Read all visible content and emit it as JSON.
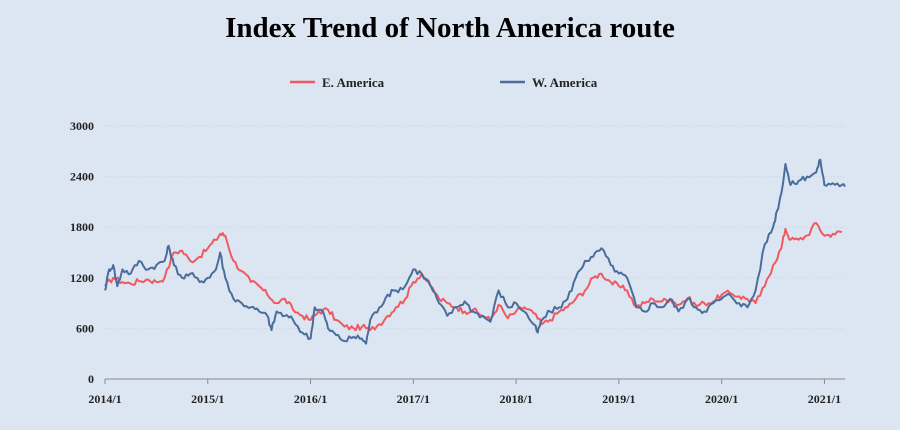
{
  "chart_data": {
    "type": "line",
    "title": "Index Trend of North America route",
    "xlabel": "",
    "ylabel": "",
    "ylim": [
      0,
      3000
    ],
    "yticks": [
      0,
      600,
      1200,
      1800,
      2400,
      3000
    ],
    "xticks": [
      "2014/1",
      "2015/1",
      "2016/1",
      "2017/1",
      "2018/1",
      "2019/1",
      "2020/1",
      "2021/1"
    ],
    "xlim": [
      2014.0,
      2021.2
    ],
    "grid": true,
    "legend_position": "top-center",
    "series": [
      {
        "name": "E. America",
        "color": "#f0595f",
        "points": [
          [
            2014.0,
            1100
          ],
          [
            2014.08,
            1200
          ],
          [
            2014.17,
            1150
          ],
          [
            2014.25,
            1130
          ],
          [
            2014.33,
            1160
          ],
          [
            2014.42,
            1180
          ],
          [
            2014.5,
            1150
          ],
          [
            2014.58,
            1200
          ],
          [
            2014.67,
            1500
          ],
          [
            2014.75,
            1520
          ],
          [
            2014.83,
            1400
          ],
          [
            2014.92,
            1450
          ],
          [
            2015.0,
            1550
          ],
          [
            2015.08,
            1650
          ],
          [
            2015.12,
            1720
          ],
          [
            2015.17,
            1700
          ],
          [
            2015.25,
            1400
          ],
          [
            2015.33,
            1280
          ],
          [
            2015.42,
            1150
          ],
          [
            2015.5,
            1100
          ],
          [
            2015.58,
            1000
          ],
          [
            2015.67,
            900
          ],
          [
            2015.75,
            950
          ],
          [
            2015.83,
            820
          ],
          [
            2015.92,
            750
          ],
          [
            2016.0,
            700
          ],
          [
            2016.08,
            800
          ],
          [
            2016.17,
            820
          ],
          [
            2016.25,
            700
          ],
          [
            2016.33,
            620
          ],
          [
            2016.42,
            600
          ],
          [
            2016.5,
            620
          ],
          [
            2016.58,
            580
          ],
          [
            2016.67,
            650
          ],
          [
            2016.75,
            750
          ],
          [
            2016.83,
            850
          ],
          [
            2016.92,
            950
          ],
          [
            2017.0,
            1150
          ],
          [
            2017.08,
            1250
          ],
          [
            2017.17,
            1100
          ],
          [
            2017.25,
            950
          ],
          [
            2017.33,
            900
          ],
          [
            2017.42,
            850
          ],
          [
            2017.5,
            800
          ],
          [
            2017.58,
            820
          ],
          [
            2017.67,
            750
          ],
          [
            2017.75,
            700
          ],
          [
            2017.83,
            880
          ],
          [
            2017.92,
            720
          ],
          [
            2018.0,
            800
          ],
          [
            2018.08,
            850
          ],
          [
            2018.17,
            780
          ],
          [
            2018.25,
            650
          ],
          [
            2018.33,
            700
          ],
          [
            2018.42,
            800
          ],
          [
            2018.5,
            850
          ],
          [
            2018.58,
            950
          ],
          [
            2018.67,
            1050
          ],
          [
            2018.75,
            1200
          ],
          [
            2018.83,
            1250
          ],
          [
            2018.92,
            1150
          ],
          [
            2019.0,
            1100
          ],
          [
            2019.08,
            1050
          ],
          [
            2019.17,
            850
          ],
          [
            2019.25,
            900
          ],
          [
            2019.33,
            950
          ],
          [
            2019.42,
            920
          ],
          [
            2019.5,
            950
          ],
          [
            2019.58,
            880
          ],
          [
            2019.67,
            960
          ],
          [
            2019.75,
            870
          ],
          [
            2019.83,
            900
          ],
          [
            2019.92,
            920
          ],
          [
            2020.0,
            1000
          ],
          [
            2020.08,
            1020
          ],
          [
            2020.17,
            980
          ],
          [
            2020.25,
            950
          ],
          [
            2020.33,
            900
          ],
          [
            2020.42,
            1100
          ],
          [
            2020.5,
            1350
          ],
          [
            2020.58,
            1550
          ],
          [
            2020.62,
            1780
          ],
          [
            2020.67,
            1650
          ],
          [
            2020.75,
            1650
          ],
          [
            2020.83,
            1700
          ],
          [
            2020.92,
            1850
          ],
          [
            2021.0,
            1700
          ],
          [
            2021.08,
            1720
          ],
          [
            2021.17,
            1740
          ]
        ]
      },
      {
        "name": "W. America",
        "color": "#4a6d9b",
        "points": [
          [
            2014.0,
            1050
          ],
          [
            2014.04,
            1300
          ],
          [
            2014.08,
            1350
          ],
          [
            2014.12,
            1100
          ],
          [
            2014.17,
            1300
          ],
          [
            2014.25,
            1250
          ],
          [
            2014.33,
            1400
          ],
          [
            2014.42,
            1300
          ],
          [
            2014.5,
            1350
          ],
          [
            2014.58,
            1400
          ],
          [
            2014.62,
            1580
          ],
          [
            2014.67,
            1350
          ],
          [
            2014.75,
            1200
          ],
          [
            2014.83,
            1250
          ],
          [
            2014.92,
            1150
          ],
          [
            2015.0,
            1200
          ],
          [
            2015.08,
            1300
          ],
          [
            2015.12,
            1500
          ],
          [
            2015.17,
            1200
          ],
          [
            2015.25,
            950
          ],
          [
            2015.33,
            900
          ],
          [
            2015.42,
            850
          ],
          [
            2015.5,
            800
          ],
          [
            2015.58,
            750
          ],
          [
            2015.62,
            580
          ],
          [
            2015.67,
            800
          ],
          [
            2015.75,
            750
          ],
          [
            2015.83,
            700
          ],
          [
            2015.92,
            550
          ],
          [
            2016.0,
            480
          ],
          [
            2016.04,
            850
          ],
          [
            2016.12,
            800
          ],
          [
            2016.17,
            600
          ],
          [
            2016.25,
            520
          ],
          [
            2016.33,
            450
          ],
          [
            2016.42,
            500
          ],
          [
            2016.5,
            480
          ],
          [
            2016.54,
            420
          ],
          [
            2016.58,
            700
          ],
          [
            2016.67,
            850
          ],
          [
            2016.75,
            1000
          ],
          [
            2016.83,
            1050
          ],
          [
            2016.92,
            1100
          ],
          [
            2017.0,
            1300
          ],
          [
            2017.08,
            1250
          ],
          [
            2017.17,
            1100
          ],
          [
            2017.25,
            900
          ],
          [
            2017.33,
            750
          ],
          [
            2017.42,
            850
          ],
          [
            2017.5,
            920
          ],
          [
            2017.58,
            800
          ],
          [
            2017.67,
            750
          ],
          [
            2017.75,
            680
          ],
          [
            2017.83,
            1050
          ],
          [
            2017.92,
            850
          ],
          [
            2018.0,
            900
          ],
          [
            2018.08,
            800
          ],
          [
            2018.17,
            650
          ],
          [
            2018.21,
            550
          ],
          [
            2018.25,
            700
          ],
          [
            2018.33,
            800
          ],
          [
            2018.42,
            850
          ],
          [
            2018.5,
            950
          ],
          [
            2018.58,
            1200
          ],
          [
            2018.67,
            1400
          ],
          [
            2018.75,
            1450
          ],
          [
            2018.83,
            1550
          ],
          [
            2018.92,
            1350
          ],
          [
            2019.0,
            1250
          ],
          [
            2019.08,
            1200
          ],
          [
            2019.17,
            850
          ],
          [
            2019.25,
            800
          ],
          [
            2019.33,
            900
          ],
          [
            2019.42,
            850
          ],
          [
            2019.5,
            950
          ],
          [
            2019.58,
            800
          ],
          [
            2019.67,
            950
          ],
          [
            2019.75,
            850
          ],
          [
            2019.83,
            800
          ],
          [
            2019.92,
            900
          ],
          [
            2020.0,
            950
          ],
          [
            2020.08,
            1000
          ],
          [
            2020.17,
            900
          ],
          [
            2020.25,
            850
          ],
          [
            2020.33,
            1050
          ],
          [
            2020.42,
            1600
          ],
          [
            2020.5,
            1800
          ],
          [
            2020.54,
            2000
          ],
          [
            2020.58,
            2200
          ],
          [
            2020.62,
            2550
          ],
          [
            2020.67,
            2300
          ],
          [
            2020.75,
            2350
          ],
          [
            2020.83,
            2400
          ],
          [
            2020.92,
            2450
          ],
          [
            2020.96,
            2600
          ],
          [
            2021.0,
            2300
          ],
          [
            2021.08,
            2320
          ],
          [
            2021.17,
            2300
          ],
          [
            2021.2,
            2280
          ]
        ]
      }
    ]
  }
}
